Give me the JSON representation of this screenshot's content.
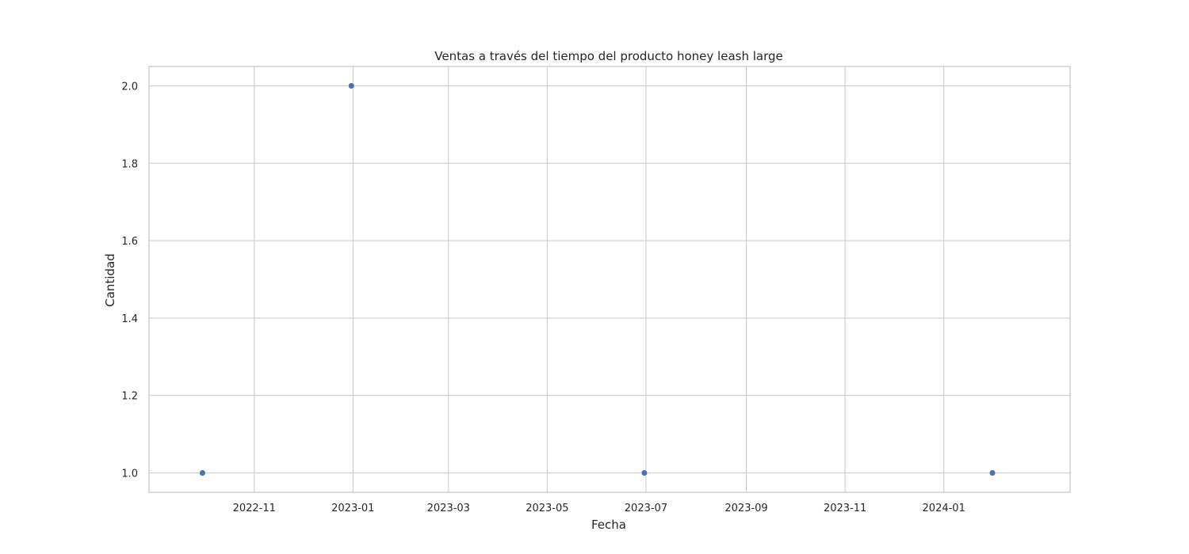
{
  "chart_data": {
    "type": "scatter",
    "title": "Ventas a través del tiempo del producto honey leash large",
    "xlabel": "Fecha",
    "ylabel": "Cantidad",
    "x_axis_type": "date",
    "xlim": [
      "2022-08-28",
      "2024-03-19"
    ],
    "ylim": [
      0.95,
      2.05
    ],
    "x_ticks": [
      "2022-11",
      "2023-01",
      "2023-03",
      "2023-05",
      "2023-07",
      "2023-09",
      "2023-11",
      "2024-01"
    ],
    "x_tick_dates": [
      "2022-11-01",
      "2023-01-01",
      "2023-03-01",
      "2023-05-01",
      "2023-07-01",
      "2023-09-01",
      "2023-11-01",
      "2024-01-01"
    ],
    "y_ticks": [
      "1.0",
      "1.2",
      "1.4",
      "1.6",
      "1.8",
      "2.0"
    ],
    "y_tick_values": [
      1.0,
      1.2,
      1.4,
      1.6,
      1.8,
      2.0
    ],
    "grid": true,
    "marker_color": "#4c72b0",
    "points": [
      {
        "x": "2022-09-30",
        "y": 1
      },
      {
        "x": "2022-12-31",
        "y": 2
      },
      {
        "x": "2023-06-30",
        "y": 1
      },
      {
        "x": "2024-01-31",
        "y": 1
      }
    ]
  }
}
